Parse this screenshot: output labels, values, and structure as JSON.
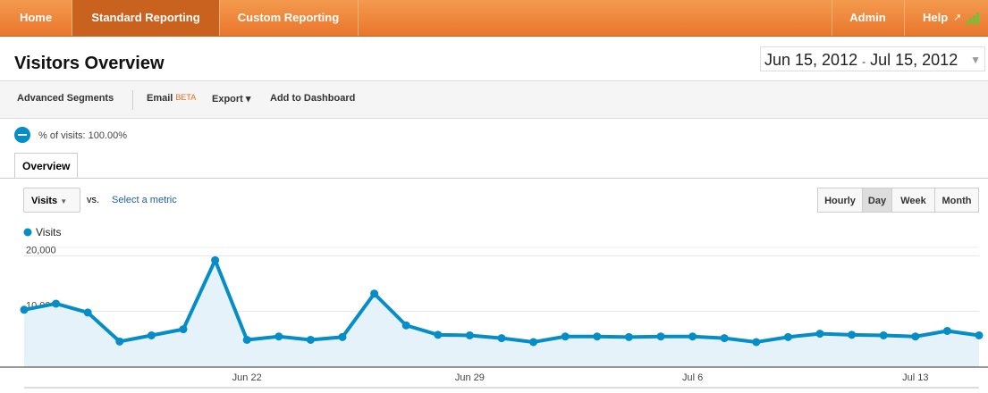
{
  "nav": {
    "items": [
      "Home",
      "Standard Reporting",
      "Custom Reporting"
    ],
    "right": [
      "Admin",
      "Help"
    ]
  },
  "header": {
    "title": "Visitors Overview",
    "date_start": "Jun 15, 2012",
    "date_sep": "-",
    "date_end": "Jul 15, 2012"
  },
  "toolbar": {
    "segments": "Advanced Segments",
    "email": "Email",
    "beta": "BETA",
    "export": "Export",
    "dashboard": "Add to Dashboard"
  },
  "segment": {
    "label": "% of visits: 100.00%"
  },
  "tabs": [
    "Overview"
  ],
  "controls": {
    "metric": "Visits",
    "vs": "vs.",
    "select": "Select a metric",
    "granularity": [
      "Hourly",
      "Day",
      "Week",
      "Month"
    ],
    "active": "Day"
  },
  "chart_data": {
    "type": "line",
    "categories": [
      null,
      null,
      null,
      null,
      null,
      null,
      null,
      "Jun 22",
      null,
      null,
      null,
      null,
      null,
      null,
      "Jun 29",
      null,
      null,
      null,
      null,
      null,
      null,
      "Jul 6",
      null,
      null,
      null,
      null,
      null,
      null,
      "Jul 13",
      null,
      null
    ],
    "series": [
      {
        "name": "Visits",
        "color": "#058dc7",
        "values": [
          10300,
          11400,
          9800,
          4600,
          5700,
          6800,
          19200,
          4900,
          5500,
          4900,
          5400,
          13200,
          7500,
          5800,
          5700,
          5200,
          4500,
          5500,
          5500,
          5400,
          5500,
          5500,
          5200,
          4500,
          5400,
          6000,
          5800,
          5700,
          5500,
          6500,
          5700
        ]
      }
    ],
    "ylim": [
      0,
      21500
    ],
    "yticks": [
      {
        "value": 10000,
        "label": "10,000"
      },
      {
        "value": 20000,
        "label": "20,000"
      }
    ],
    "grid": true
  }
}
